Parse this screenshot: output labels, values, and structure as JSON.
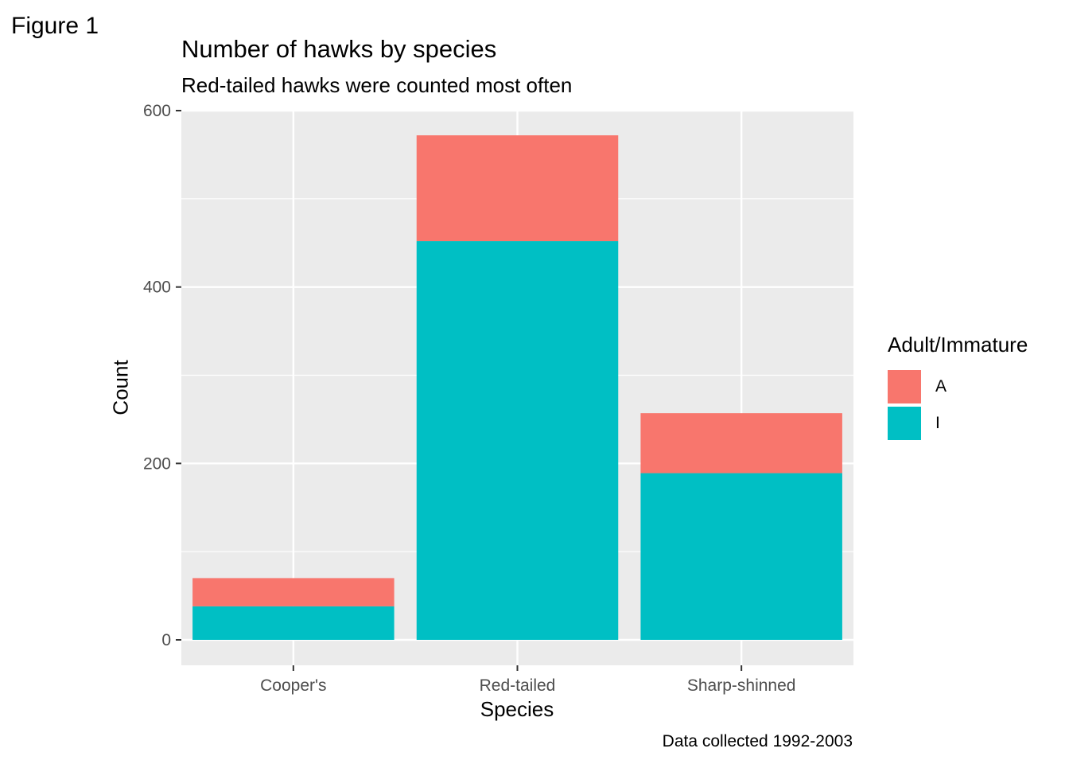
{
  "figure_label": "Figure 1",
  "chart_data": {
    "type": "bar",
    "stacked": true,
    "title": "Number of hawks by species",
    "subtitle": "Red-tailed hawks were counted most often",
    "caption": "Data collected 1992-2003",
    "xlabel": "Species",
    "ylabel": "Count",
    "categories": [
      "Cooper's",
      "Red-tailed",
      "Sharp-shinned"
    ],
    "series": [
      {
        "name": "I",
        "color": "#00BFC4",
        "values": [
          38,
          452,
          189
        ]
      },
      {
        "name": "A",
        "color": "#F8766D",
        "values": [
          32,
          120,
          68
        ]
      }
    ],
    "ylim": [
      0,
      600
    ],
    "yticks": [
      0,
      200,
      400,
      600
    ],
    "grid": true,
    "legend": {
      "title": "Adult/Immature",
      "position": "right",
      "entries": [
        {
          "label": "A",
          "color": "#F8766D"
        },
        {
          "label": "I",
          "color": "#00BFC4"
        }
      ]
    }
  }
}
